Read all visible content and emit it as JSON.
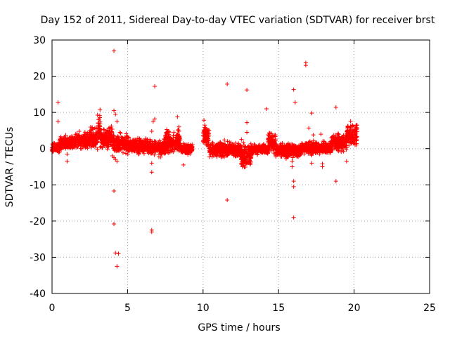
{
  "chart_data": {
    "type": "scatter",
    "title": "Day 152 of 2011, Sidereal Day-to-day VTEC variation (SDTVAR) for receiver brst",
    "xlabel": "GPS time / hours",
    "ylabel": "SDTVAR / TECUs",
    "xlim": [
      0,
      25
    ],
    "ylim": [
      -40,
      30
    ],
    "xticks": [
      0,
      5,
      10,
      15,
      20,
      25
    ],
    "yticks": [
      -40,
      -30,
      -20,
      -10,
      0,
      10,
      20,
      30
    ],
    "grid": true,
    "marker": "+",
    "color": "#ff0000",
    "series": [
      {
        "name": "SDTVAR",
        "bands": [
          {
            "x": [
              0.0,
              0.5
            ],
            "y": [
              -1.5,
              2.0
            ]
          },
          {
            "x": [
              0.5,
              1.5
            ],
            "y": [
              -0.5,
              4.0
            ]
          },
          {
            "x": [
              1.5,
              2.5
            ],
            "y": [
              -0.5,
              5.0
            ]
          },
          {
            "x": [
              2.5,
              3.0
            ],
            "y": [
              -1.0,
              7.0
            ]
          },
          {
            "x": [
              3.0,
              3.2
            ],
            "y": [
              -2.0,
              13.0
            ]
          },
          {
            "x": [
              3.2,
              4.0
            ],
            "y": [
              -1.0,
              7.0
            ]
          },
          {
            "x": [
              4.0,
              5.0
            ],
            "y": [
              -2.0,
              5.0
            ]
          },
          {
            "x": [
              5.0,
              6.5
            ],
            "y": [
              -2.0,
              3.5
            ]
          },
          {
            "x": [
              6.5,
              7.5
            ],
            "y": [
              -2.5,
              3.0
            ]
          },
          {
            "x": [
              7.5,
              8.5
            ],
            "y": [
              -2.5,
              6.0
            ]
          },
          {
            "x": [
              8.5,
              9.3
            ],
            "y": [
              -2.0,
              2.0
            ]
          },
          {
            "x": [
              10.0,
              10.4
            ],
            "y": [
              -1.0,
              8.0
            ]
          },
          {
            "x": [
              10.4,
              12.5
            ],
            "y": [
              -3.0,
              2.5
            ]
          },
          {
            "x": [
              12.5,
              13.2
            ],
            "y": [
              -6.0,
              3.0
            ]
          },
          {
            "x": [
              13.2,
              14.3
            ],
            "y": [
              -2.0,
              1.5
            ]
          },
          {
            "x": [
              14.3,
              14.8
            ],
            "y": [
              -2.0,
              5.0
            ]
          },
          {
            "x": [
              14.8,
              16.5
            ],
            "y": [
              -3.0,
              2.0
            ]
          },
          {
            "x": [
              16.5,
              18.5
            ],
            "y": [
              -2.0,
              2.5
            ]
          },
          {
            "x": [
              18.5,
              19.5
            ],
            "y": [
              -1.5,
              5.0
            ]
          },
          {
            "x": [
              19.5,
              20.2
            ],
            "y": [
              -0.5,
              8.0
            ]
          }
        ],
        "points": [
          [
            0.4,
            12.8
          ],
          [
            0.4,
            7.5
          ],
          [
            1.0,
            -3.5
          ],
          [
            1.0,
            -1.5
          ],
          [
            4.1,
            27.0
          ],
          [
            4.1,
            10.5
          ],
          [
            4.2,
            9.5
          ],
          [
            4.3,
            7.5
          ],
          [
            4.0,
            -2.0
          ],
          [
            4.1,
            -2.5
          ],
          [
            4.2,
            -3.0
          ],
          [
            4.3,
            -3.5
          ],
          [
            4.1,
            -11.7
          ],
          [
            4.1,
            -20.8
          ],
          [
            4.2,
            -28.8
          ],
          [
            4.4,
            -29.0
          ],
          [
            4.3,
            -32.5
          ],
          [
            6.8,
            17.2
          ],
          [
            6.8,
            8.2
          ],
          [
            6.7,
            7.5
          ],
          [
            6.6,
            4.8
          ],
          [
            6.6,
            -4.0
          ],
          [
            6.6,
            -6.5
          ],
          [
            6.6,
            -22.5
          ],
          [
            6.6,
            -23.0
          ],
          [
            8.3,
            8.8
          ],
          [
            8.4,
            6.0
          ],
          [
            8.7,
            -4.5
          ],
          [
            11.6,
            17.8
          ],
          [
            11.6,
            -14.2
          ],
          [
            12.9,
            16.2
          ],
          [
            12.9,
            7.2
          ],
          [
            12.9,
            4.5
          ],
          [
            12.6,
            -5.0
          ],
          [
            14.2,
            11.0
          ],
          [
            16.0,
            16.3
          ],
          [
            16.1,
            12.8
          ],
          [
            15.9,
            -5.0
          ],
          [
            15.9,
            -3.5
          ],
          [
            16.0,
            -9.0
          ],
          [
            16.0,
            -10.5
          ],
          [
            16.0,
            -19.0
          ],
          [
            16.8,
            23.7
          ],
          [
            16.8,
            23.0
          ],
          [
            17.0,
            5.7
          ],
          [
            17.2,
            9.8
          ],
          [
            17.3,
            3.8
          ],
          [
            17.2,
            -4.0
          ],
          [
            17.8,
            4.0
          ],
          [
            17.9,
            -5.0
          ],
          [
            17.9,
            -4.2
          ],
          [
            18.8,
            11.4
          ],
          [
            18.8,
            -9.0
          ],
          [
            19.5,
            -3.5
          ]
        ]
      }
    ]
  }
}
